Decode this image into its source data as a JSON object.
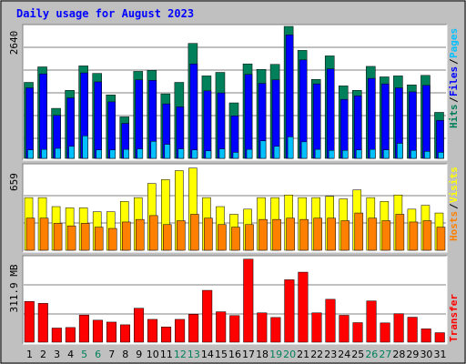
{
  "title": "Daily usage for August 2023",
  "colors": {
    "background": "#c0c0c0",
    "panel": "#ffffff",
    "hits": "#00805a",
    "files": "#0000ff",
    "pages": "#00c0ff",
    "visits": "#ffff00",
    "hosts": "#ff8000",
    "kbytes": "#ff0000",
    "title": "#0000ff",
    "weekend_label": "#00805a"
  },
  "chart_data": [
    {
      "type": "bar",
      "panel": "hits",
      "ymax_label": "2640",
      "ylim": [
        0,
        2640
      ],
      "legend": [
        "Hits",
        "Files",
        "Pages"
      ],
      "legend_sep": "/",
      "x": [
        "1",
        "2",
        "3",
        "4",
        "5",
        "6",
        "7",
        "8",
        "9",
        "10",
        "11",
        "12",
        "13",
        "14",
        "15",
        "16",
        "17",
        "18",
        "19",
        "20",
        "21",
        "22",
        "23",
        "24",
        "25",
        "26",
        "27",
        "28",
        "29",
        "30",
        "31"
      ],
      "weekend_days": [
        "5",
        "6",
        "12",
        "13",
        "19",
        "20",
        "26",
        "27"
      ],
      "series": [
        {
          "name": "Hits",
          "values": [
            1520,
            1830,
            1000,
            1360,
            1850,
            1700,
            1270,
            830,
            1740,
            1760,
            1290,
            1520,
            2300,
            1650,
            1720,
            1110,
            1890,
            1780,
            1880,
            2640,
            2160,
            1580,
            2050,
            1450,
            1360,
            1840,
            1630,
            1650,
            1470,
            1660,
            920
          ]
        },
        {
          "name": "Files",
          "values": [
            1410,
            1690,
            860,
            1210,
            1710,
            1530,
            1130,
            700,
            1570,
            1560,
            1090,
            1030,
            1890,
            1350,
            1310,
            850,
            1680,
            1500,
            1570,
            2470,
            1970,
            1490,
            1790,
            1180,
            1250,
            1600,
            1490,
            1410,
            1330,
            1460,
            760
          ]
        },
        {
          "name": "Pages",
          "values": [
            170,
            180,
            200,
            240,
            450,
            170,
            170,
            180,
            190,
            340,
            280,
            190,
            170,
            150,
            190,
            120,
            180,
            350,
            240,
            430,
            330,
            180,
            160,
            160,
            170,
            180,
            170,
            300,
            160,
            140,
            120
          ]
        }
      ]
    },
    {
      "type": "bar",
      "panel": "visits",
      "ymax_label": "659",
      "ylim": [
        0,
        659
      ],
      "legend": [
        "Hosts",
        "Visits"
      ],
      "legend_sep": "/",
      "x": [
        "1",
        "2",
        "3",
        "4",
        "5",
        "6",
        "7",
        "8",
        "9",
        "10",
        "11",
        "12",
        "13",
        "14",
        "15",
        "16",
        "17",
        "18",
        "19",
        "20",
        "21",
        "22",
        "23",
        "24",
        "25",
        "26",
        "27",
        "28",
        "29",
        "30",
        "31"
      ],
      "series": [
        {
          "name": "Visits",
          "values": [
            410,
            410,
            340,
            330,
            330,
            300,
            300,
            380,
            410,
            520,
            550,
            620,
            640,
            410,
            340,
            280,
            320,
            410,
            410,
            430,
            410,
            410,
            420,
            400,
            470,
            410,
            380,
            430,
            320,
            350,
            290
          ]
        },
        {
          "name": "Hosts",
          "values": [
            250,
            250,
            210,
            190,
            210,
            180,
            170,
            220,
            240,
            270,
            200,
            230,
            280,
            250,
            200,
            180,
            200,
            240,
            240,
            250,
            240,
            250,
            250,
            230,
            290,
            250,
            230,
            280,
            220,
            230,
            180
          ]
        }
      ]
    },
    {
      "type": "bar",
      "panel": "kbytes",
      "ymax_label": "311.9 MB",
      "ylim": [
        0,
        311.9
      ],
      "legend": [
        "Transfer"
      ],
      "legend_sep": "",
      "x": [
        "1",
        "2",
        "3",
        "4",
        "5",
        "6",
        "7",
        "8",
        "9",
        "10",
        "11",
        "12",
        "13",
        "14",
        "15",
        "16",
        "17",
        "18",
        "19",
        "20",
        "21",
        "22",
        "23",
        "24",
        "25",
        "26",
        "27",
        "28",
        "29",
        "30",
        "31"
      ],
      "series": [
        {
          "name": "Transfer",
          "values": [
            150,
            143,
            52,
            54,
            100,
            81,
            74,
            64,
            125,
            84,
            56,
            84,
            103,
            191,
            112,
            98,
            306,
            108,
            91,
            230,
            258,
            108,
            158,
            99,
            72,
            152,
            71,
            105,
            92,
            49,
            35
          ]
        }
      ]
    }
  ]
}
